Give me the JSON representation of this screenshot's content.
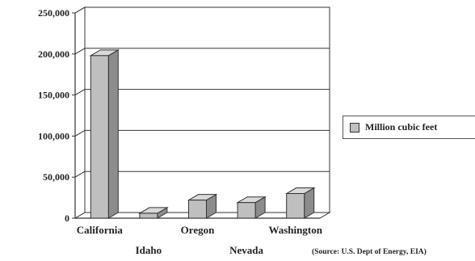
{
  "chart_data": {
    "type": "bar",
    "categories": [
      "California",
      "Idaho",
      "Oregon",
      "Nevada",
      "Washington"
    ],
    "series": [
      {
        "name": "Million cubic feet",
        "values": [
          198000,
          6000,
          22000,
          19000,
          30000
        ]
      }
    ],
    "title": "",
    "xlabel": "",
    "ylabel": "",
    "ylim": [
      0,
      250000
    ],
    "yticks": [
      "0",
      "50,000",
      "100,000",
      "150,000",
      "200,000",
      "250,000"
    ],
    "ytick_values": [
      0,
      50000,
      100000,
      150000,
      200000,
      250000
    ],
    "grid": true,
    "legend": "right",
    "bar_style": "3d",
    "colors": {
      "bar_front": "#bfbfbf",
      "bar_side": "#8c8c8c",
      "bar_top": "#d9d9d9",
      "outline": "#333333"
    }
  },
  "legend": {
    "label": "Million cubic feet"
  },
  "source": "(Source: U.S. Dept of Energy, EIA)"
}
